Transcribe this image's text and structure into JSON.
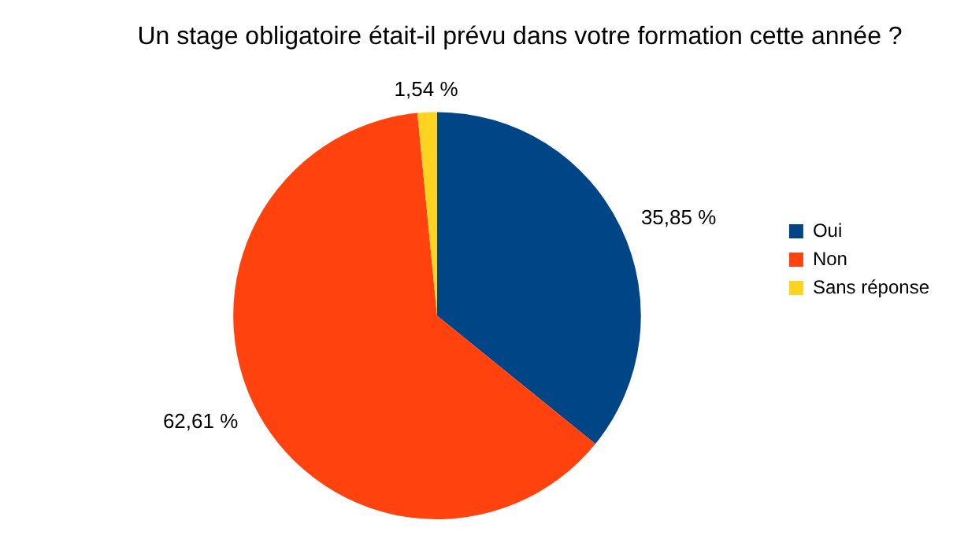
{
  "chart_data": {
    "type": "pie",
    "title": "Un stage obligatoire était-il prévu dans votre formation cette année ?",
    "categories": [
      "Oui",
      "Non",
      "Sans réponse"
    ],
    "values": [
      35.85,
      62.61,
      1.54
    ],
    "colors": [
      "#004586",
      "#ff420e",
      "#ffd320"
    ],
    "value_labels": [
      "35,85 %",
      "62,61 %",
      "1,54 %"
    ],
    "legend": "right"
  }
}
